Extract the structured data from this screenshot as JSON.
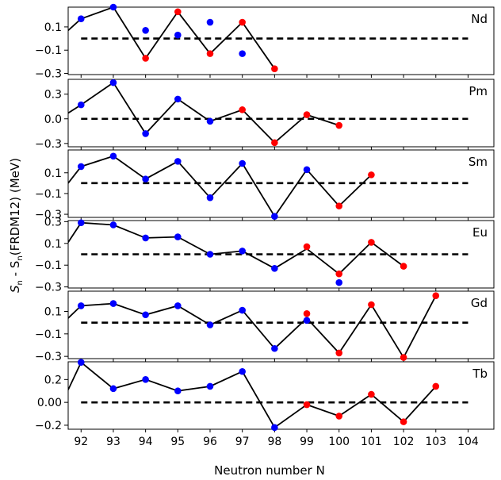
{
  "chart_data": {
    "type": "scatter",
    "xlabel": "Neutron number N",
    "ylabel_main": "S",
    "ylabel_sub": "n",
    "ylabel_mid": " - S",
    "ylabel_sub2": "n",
    "ylabel_tail": "(FRDM12) (MeV)",
    "xlim": [
      91.6,
      104.8
    ],
    "x_ticks": [
      {
        "v": 92,
        "label": "92"
      },
      {
        "v": 93,
        "label": "93"
      },
      {
        "v": 94,
        "label": "94"
      },
      {
        "v": 95,
        "label": "95"
      },
      {
        "v": 96,
        "label": "96"
      },
      {
        "v": 97,
        "label": "97"
      },
      {
        "v": 98,
        "label": "98"
      },
      {
        "v": 99,
        "label": "99"
      },
      {
        "v": 100,
        "label": "100"
      },
      {
        "v": 101,
        "label": "101"
      },
      {
        "v": 102,
        "label": "102"
      },
      {
        "v": 103,
        "label": "103"
      },
      {
        "v": 104,
        "label": "104"
      }
    ],
    "colors": {
      "blue": "#0000ff",
      "red": "#ff0000"
    },
    "panels": [
      {
        "label": "Nd",
        "ylim": [
          -0.31,
          0.27
        ],
        "y_ticks": [
          {
            "v": 0.1,
            "label": "0.1"
          },
          {
            "v": -0.1,
            "label": "−0.1"
          },
          {
            "v": -0.3,
            "label": "−0.3"
          }
        ],
        "line": [
          [
            91.6,
            0.07
          ],
          [
            92,
            0.17
          ],
          [
            93,
            0.27
          ],
          [
            94,
            -0.17
          ],
          [
            95,
            0.23
          ],
          [
            96,
            -0.13
          ],
          [
            97,
            0.14
          ],
          [
            98,
            -0.26
          ]
        ],
        "points": [
          {
            "x": 92,
            "y": 0.17,
            "c": "blue"
          },
          {
            "x": 93,
            "y": 0.27,
            "c": "blue"
          },
          {
            "x": 94,
            "y": 0.07,
            "c": "blue"
          },
          {
            "x": 94,
            "y": -0.17,
            "c": "red"
          },
          {
            "x": 95,
            "y": 0.23,
            "c": "red"
          },
          {
            "x": 95,
            "y": 0.03,
            "c": "blue"
          },
          {
            "x": 96,
            "y": 0.14,
            "c": "blue"
          },
          {
            "x": 96,
            "y": -0.13,
            "c": "red"
          },
          {
            "x": 97,
            "y": 0.14,
            "c": "red"
          },
          {
            "x": 97,
            "y": -0.13,
            "c": "blue"
          },
          {
            "x": 98,
            "y": -0.26,
            "c": "red"
          }
        ]
      },
      {
        "label": "Pm",
        "ylim": [
          -0.34,
          0.48
        ],
        "y_ticks": [
          {
            "v": 0.3,
            "label": "0.3"
          },
          {
            "v": 0.0,
            "label": "0.0"
          },
          {
            "v": -0.3,
            "label": "−0.3"
          }
        ],
        "line": [
          [
            91.6,
            0.07
          ],
          [
            92,
            0.17
          ],
          [
            93,
            0.44
          ],
          [
            94,
            -0.18
          ],
          [
            95,
            0.24
          ],
          [
            96,
            -0.03
          ],
          [
            97,
            0.11
          ],
          [
            98,
            -0.29
          ],
          [
            99,
            0.05
          ],
          [
            100,
            -0.08
          ]
        ],
        "points": [
          {
            "x": 92,
            "y": 0.17,
            "c": "blue"
          },
          {
            "x": 93,
            "y": 0.44,
            "c": "blue"
          },
          {
            "x": 94,
            "y": -0.18,
            "c": "blue"
          },
          {
            "x": 95,
            "y": 0.24,
            "c": "blue"
          },
          {
            "x": 96,
            "y": -0.03,
            "c": "blue"
          },
          {
            "x": 97,
            "y": 0.11,
            "c": "red"
          },
          {
            "x": 98,
            "y": -0.29,
            "c": "red"
          },
          {
            "x": 99,
            "y": 0.05,
            "c": "red"
          },
          {
            "x": 100,
            "y": -0.08,
            "c": "red"
          }
        ]
      },
      {
        "label": "Sm",
        "ylim": [
          -0.33,
          0.32
        ],
        "y_ticks": [
          {
            "v": 0.1,
            "label": "0.1"
          },
          {
            "v": -0.1,
            "label": "−0.1"
          },
          {
            "v": -0.3,
            "label": "−0.3"
          }
        ],
        "line": [
          [
            91.6,
            0.0
          ],
          [
            92,
            0.16
          ],
          [
            93,
            0.26
          ],
          [
            94,
            0.04
          ],
          [
            95,
            0.21
          ],
          [
            96,
            -0.14
          ],
          [
            97,
            0.19
          ],
          [
            98,
            -0.32
          ],
          [
            99,
            0.13
          ],
          [
            100,
            -0.22
          ],
          [
            101,
            0.08
          ]
        ],
        "points": [
          {
            "x": 92,
            "y": 0.16,
            "c": "blue"
          },
          {
            "x": 93,
            "y": 0.26,
            "c": "blue"
          },
          {
            "x": 94,
            "y": 0.04,
            "c": "blue"
          },
          {
            "x": 95,
            "y": 0.21,
            "c": "blue"
          },
          {
            "x": 96,
            "y": -0.14,
            "c": "blue"
          },
          {
            "x": 97,
            "y": 0.19,
            "c": "blue"
          },
          {
            "x": 98,
            "y": -0.32,
            "c": "blue"
          },
          {
            "x": 99,
            "y": 0.13,
            "c": "blue"
          },
          {
            "x": 100,
            "y": -0.22,
            "c": "red"
          },
          {
            "x": 101,
            "y": 0.08,
            "c": "red"
          }
        ]
      },
      {
        "label": "Eu",
        "ylim": [
          -0.31,
          0.31
        ],
        "y_ticks": [
          {
            "v": 0.3,
            "label": "0.3"
          },
          {
            "v": 0.1,
            "label": "0.1"
          },
          {
            "v": -0.1,
            "label": "−0.1"
          },
          {
            "v": -0.3,
            "label": "−0.3"
          }
        ],
        "line": [
          [
            91.6,
            0.11
          ],
          [
            92,
            0.29
          ],
          [
            93,
            0.27
          ],
          [
            94,
            0.15
          ],
          [
            95,
            0.16
          ],
          [
            96,
            0.0
          ],
          [
            97,
            0.03
          ],
          [
            98,
            -0.13
          ],
          [
            99,
            0.05
          ],
          [
            100,
            -0.18
          ],
          [
            101,
            0.11
          ],
          [
            102,
            -0.11
          ]
        ],
        "points": [
          {
            "x": 92,
            "y": 0.29,
            "c": "blue"
          },
          {
            "x": 93,
            "y": 0.27,
            "c": "blue"
          },
          {
            "x": 94,
            "y": 0.15,
            "c": "blue"
          },
          {
            "x": 95,
            "y": 0.16,
            "c": "blue"
          },
          {
            "x": 96,
            "y": 0.0,
            "c": "blue"
          },
          {
            "x": 97,
            "y": 0.03,
            "c": "blue"
          },
          {
            "x": 98,
            "y": -0.13,
            "c": "blue"
          },
          {
            "x": 99,
            "y": 0.07,
            "c": "red"
          },
          {
            "x": 100,
            "y": -0.18,
            "c": "red"
          },
          {
            "x": 100,
            "y": -0.26,
            "c": "blue"
          },
          {
            "x": 101,
            "y": 0.11,
            "c": "red"
          },
          {
            "x": 102,
            "y": -0.11,
            "c": "red"
          }
        ]
      },
      {
        "label": "Gd",
        "ylim": [
          -0.32,
          0.28
        ],
        "y_ticks": [
          {
            "v": 0.1,
            "label": "0.1"
          },
          {
            "v": -0.1,
            "label": "−0.1"
          },
          {
            "v": -0.3,
            "label": "−0.3"
          }
        ],
        "line": [
          [
            91.6,
            0.04
          ],
          [
            92,
            0.15
          ],
          [
            93,
            0.17
          ],
          [
            94,
            0.07
          ],
          [
            95,
            0.15
          ],
          [
            96,
            -0.02
          ],
          [
            97,
            0.11
          ],
          [
            98,
            -0.23
          ],
          [
            99,
            0.04
          ],
          [
            100,
            -0.27
          ],
          [
            101,
            0.16
          ],
          [
            102,
            -0.31
          ],
          [
            103,
            0.24
          ]
        ],
        "points": [
          {
            "x": 92,
            "y": 0.15,
            "c": "blue"
          },
          {
            "x": 93,
            "y": 0.17,
            "c": "blue"
          },
          {
            "x": 94,
            "y": 0.07,
            "c": "blue"
          },
          {
            "x": 95,
            "y": 0.15,
            "c": "blue"
          },
          {
            "x": 96,
            "y": -0.02,
            "c": "blue"
          },
          {
            "x": 97,
            "y": 0.11,
            "c": "blue"
          },
          {
            "x": 98,
            "y": -0.23,
            "c": "blue"
          },
          {
            "x": 99,
            "y": 0.08,
            "c": "red"
          },
          {
            "x": 99,
            "y": 0.02,
            "c": "blue"
          },
          {
            "x": 100,
            "y": -0.27,
            "c": "red"
          },
          {
            "x": 101,
            "y": 0.16,
            "c": "red"
          },
          {
            "x": 102,
            "y": -0.31,
            "c": "red"
          },
          {
            "x": 103,
            "y": 0.24,
            "c": "red"
          }
        ]
      },
      {
        "label": "Tb",
        "ylim": [
          -0.235,
          0.355
        ],
        "y_ticks": [
          {
            "v": 0.2,
            "label": "0.2"
          },
          {
            "v": 0.0,
            "label": "0.00"
          },
          {
            "v": -0.2,
            "label": "−0.2"
          }
        ],
        "line": [
          [
            91.6,
            0.11
          ],
          [
            92,
            0.35
          ],
          [
            93,
            0.12
          ],
          [
            94,
            0.2
          ],
          [
            95,
            0.1
          ],
          [
            96,
            0.14
          ],
          [
            97,
            0.27
          ],
          [
            98,
            -0.22
          ],
          [
            99,
            -0.02
          ],
          [
            100,
            -0.12
          ],
          [
            101,
            0.07
          ],
          [
            102,
            -0.17
          ],
          [
            103,
            0.14
          ]
        ],
        "points": [
          {
            "x": 92,
            "y": 0.35,
            "c": "blue"
          },
          {
            "x": 93,
            "y": 0.12,
            "c": "blue"
          },
          {
            "x": 94,
            "y": 0.2,
            "c": "blue"
          },
          {
            "x": 95,
            "y": 0.1,
            "c": "blue"
          },
          {
            "x": 96,
            "y": 0.14,
            "c": "blue"
          },
          {
            "x": 97,
            "y": 0.27,
            "c": "blue"
          },
          {
            "x": 98,
            "y": -0.22,
            "c": "blue"
          },
          {
            "x": 99,
            "y": -0.02,
            "c": "red"
          },
          {
            "x": 100,
            "y": -0.12,
            "c": "red"
          },
          {
            "x": 101,
            "y": 0.07,
            "c": "red"
          },
          {
            "x": 102,
            "y": -0.17,
            "c": "red"
          },
          {
            "x": 103,
            "y": 0.14,
            "c": "red"
          }
        ]
      }
    ]
  }
}
